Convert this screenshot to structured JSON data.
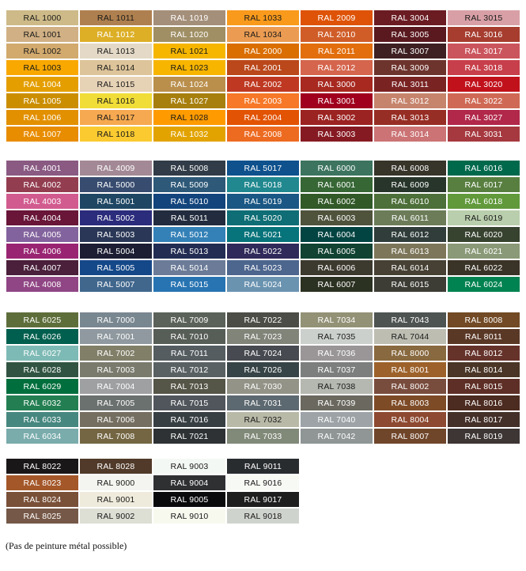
{
  "groups": [
    {
      "rows": 8,
      "columns": [
        [
          [
            "RAL 1000",
            "#CDBA88",
            "d"
          ],
          [
            "RAL 1001",
            "#D0B084",
            "d"
          ],
          [
            "RAL 1002",
            "#D2AA6D",
            "d"
          ],
          [
            "RAL 1003",
            "#F9A800",
            "d"
          ],
          [
            "RAL 1004",
            "#E49E00",
            "w"
          ],
          [
            "RAL 1005",
            "#CB8E00",
            "w"
          ],
          [
            "RAL 1006",
            "#E29000",
            "w"
          ],
          [
            "RAL 1007",
            "#E88C00",
            "w"
          ]
        ],
        [
          [
            "RAL 1011",
            "#AF804F",
            "d"
          ],
          [
            "RAL 1012",
            "#DDAF27",
            "w"
          ],
          [
            "RAL 1013",
            "#E3D9C6",
            "d"
          ],
          [
            "RAL 1014",
            "#DDC49A",
            "d"
          ],
          [
            "RAL 1015",
            "#E6D2B5",
            "d"
          ],
          [
            "RAL 1016",
            "#F1DD38",
            "d"
          ],
          [
            "RAL 1017",
            "#F6A950",
            "d"
          ],
          [
            "RAL 1018",
            "#FACA30",
            "d"
          ]
        ],
        [
          [
            "RAL 1019",
            "#A48F7A",
            "w"
          ],
          [
            "RAL 1020",
            "#A08F65",
            "w"
          ],
          [
            "RAL 1021",
            "#F6B600",
            "d"
          ],
          [
            "RAL 1023",
            "#F7B500",
            "d"
          ],
          [
            "RAL 1024",
            "#BA8F4C",
            "w"
          ],
          [
            "RAL 1027",
            "#A77F0E",
            "w"
          ],
          [
            "RAL 1028",
            "#FF9B00",
            "d"
          ],
          [
            "RAL 1032",
            "#E2A300",
            "w"
          ]
        ],
        [
          [
            "RAL 1033",
            "#F99A1C",
            "d"
          ],
          [
            "RAL 1034",
            "#EB9C52",
            "d"
          ],
          [
            "RAL 2000",
            "#DA6E00",
            "w"
          ],
          [
            "RAL 2001",
            "#BA481B",
            "w"
          ],
          [
            "RAL 2002",
            "#BF3922",
            "w"
          ],
          [
            "RAL 2003",
            "#F67828",
            "w"
          ],
          [
            "RAL 2004",
            "#E25303",
            "w"
          ],
          [
            "RAL 2008",
            "#ED6B21",
            "w"
          ]
        ],
        [
          [
            "RAL 2009",
            "#DE5307",
            "w"
          ],
          [
            "RAL 2010",
            "#D05D28",
            "w"
          ],
          [
            "RAL 2011",
            "#E26E0E",
            "w"
          ],
          [
            "RAL 2012",
            "#D5654D",
            "w"
          ],
          [
            "RAL 3000",
            "#A72920",
            "w"
          ],
          [
            "RAL 3001",
            "#A0001E",
            "w"
          ],
          [
            "RAL 3002",
            "#9B2321",
            "w"
          ],
          [
            "RAL 3003",
            "#861A22",
            "w"
          ]
        ],
        [
          [
            "RAL 3004",
            "#6B1C23",
            "w"
          ],
          [
            "RAL 3005",
            "#59191F",
            "w"
          ],
          [
            "RAL 3007",
            "#3E2022",
            "w"
          ],
          [
            "RAL 3009",
            "#6D342D",
            "w"
          ],
          [
            "RAL 3011",
            "#792423",
            "w"
          ],
          [
            "RAL 3012",
            "#C6846D",
            "w"
          ],
          [
            "RAL 3013",
            "#972E25",
            "w"
          ],
          [
            "RAL 3014",
            "#CB7375",
            "w"
          ]
        ],
        [
          [
            "RAL 3015",
            "#D8A0A6",
            "d"
          ],
          [
            "RAL 3016",
            "#A63D2F",
            "w"
          ],
          [
            "RAL 3017",
            "#CB555D",
            "w"
          ],
          [
            "RAL 3018",
            "#C73F4A",
            "w"
          ],
          [
            "RAL 3020",
            "#C1121C",
            "w"
          ],
          [
            "RAL 3022",
            "#CF6955",
            "w"
          ],
          [
            "RAL 3027",
            "#B1284A",
            "w"
          ],
          [
            "RAL 3031",
            "#A6393F",
            "w"
          ]
        ]
      ]
    },
    {
      "rows": 8,
      "columns": [
        [
          [
            "RAL 4001",
            "#8A5A83",
            "w"
          ],
          [
            "RAL 4002",
            "#933D50",
            "w"
          ],
          [
            "RAL 4003",
            "#D15B8F",
            "w"
          ],
          [
            "RAL 4004",
            "#691639",
            "w"
          ],
          [
            "RAL 4005",
            "#83639D",
            "w"
          ],
          [
            "RAL 4006",
            "#992572",
            "w"
          ],
          [
            "RAL 4007",
            "#4A203B",
            "w"
          ],
          [
            "RAL 4008",
            "#904684",
            "w"
          ]
        ],
        [
          [
            "RAL 4009",
            "#A38995",
            "w"
          ],
          [
            "RAL 5000",
            "#384C70",
            "w"
          ],
          [
            "RAL 5001",
            "#1F4764",
            "w"
          ],
          [
            "RAL 5002",
            "#2B2C7C",
            "w"
          ],
          [
            "RAL 5003",
            "#2A3756",
            "w"
          ],
          [
            "RAL 5004",
            "#1D1E33",
            "w"
          ],
          [
            "RAL 5005",
            "#154889",
            "w"
          ],
          [
            "RAL 5007",
            "#41678D",
            "w"
          ]
        ],
        [
          [
            "RAL 5008",
            "#313C48",
            "w"
          ],
          [
            "RAL 5009",
            "#2E5978",
            "w"
          ],
          [
            "RAL 5010",
            "#13447C",
            "w"
          ],
          [
            "RAL 5011",
            "#232C3F",
            "w"
          ],
          [
            "RAL 5012",
            "#3481B8",
            "w"
          ],
          [
            "RAL 5013",
            "#232D53",
            "w"
          ],
          [
            "RAL 5014",
            "#6C7C98",
            "w"
          ],
          [
            "RAL 5015",
            "#2874B2",
            "w"
          ]
        ],
        [
          [
            "RAL 5017",
            "#0E518D",
            "w"
          ],
          [
            "RAL 5018",
            "#21888F",
            "w"
          ],
          [
            "RAL 5019",
            "#1A5784",
            "w"
          ],
          [
            "RAL 5020",
            "#0F6E75",
            "w"
          ],
          [
            "RAL 5021",
            "#07737A",
            "w"
          ],
          [
            "RAL 5022",
            "#2F2A5A",
            "w"
          ],
          [
            "RAL 5023",
            "#4D668E",
            "w"
          ],
          [
            "RAL 5024",
            "#6A93B0",
            "w"
          ]
        ],
        [
          [
            "RAL 6000",
            "#3C7460",
            "w"
          ],
          [
            "RAL 6001",
            "#366735",
            "w"
          ],
          [
            "RAL 6002",
            "#325928",
            "w"
          ],
          [
            "RAL 6003",
            "#50533C",
            "w"
          ],
          [
            "RAL 6004",
            "#024442",
            "w"
          ],
          [
            "RAL 6005",
            "#114232",
            "w"
          ],
          [
            "RAL 6006",
            "#3C392E",
            "w"
          ],
          [
            "RAL 6007",
            "#2C3222",
            "w"
          ]
        ],
        [
          [
            "RAL 6008",
            "#37342A",
            "w"
          ],
          [
            "RAL 6009",
            "#27352A",
            "w"
          ],
          [
            "RAL 6010",
            "#4D6F39",
            "w"
          ],
          [
            "RAL 6011",
            "#6C7C59",
            "w"
          ],
          [
            "RAL 6012",
            "#303D3A",
            "w"
          ],
          [
            "RAL 6013",
            "#7D765A",
            "w"
          ],
          [
            "RAL 6014",
            "#474135",
            "w"
          ],
          [
            "RAL 6015",
            "#3D3D36",
            "w"
          ]
        ],
        [
          [
            "RAL 6016",
            "#00694C",
            "w"
          ],
          [
            "RAL 6017",
            "#587F40",
            "w"
          ],
          [
            "RAL 6018",
            "#61993B",
            "w"
          ],
          [
            "RAL 6019",
            "#B9CEAC",
            "d"
          ],
          [
            "RAL 6020",
            "#37422F",
            "w"
          ],
          [
            "RAL 6021",
            "#8A9977",
            "w"
          ],
          [
            "RAL 6022",
            "#3A3327",
            "w"
          ],
          [
            "RAL 6024",
            "#008351",
            "w"
          ]
        ]
      ]
    },
    {
      "rows": 8,
      "columns": [
        [
          [
            "RAL 6025",
            "#5E6E3B",
            "w"
          ],
          [
            "RAL 6026",
            "#005F4E",
            "w"
          ],
          [
            "RAL 6027",
            "#7EBAB5",
            "w"
          ],
          [
            "RAL 6028",
            "#315442",
            "w"
          ],
          [
            "RAL 6029",
            "#006F3D",
            "w"
          ],
          [
            "RAL 6032",
            "#237F52",
            "w"
          ],
          [
            "RAL 6033",
            "#46877F",
            "w"
          ],
          [
            "RAL 6034",
            "#7AACAC",
            "w"
          ]
        ],
        [
          [
            "RAL 7000",
            "#798790",
            "w"
          ],
          [
            "RAL 7001",
            "#8F999F",
            "w"
          ],
          [
            "RAL 7002",
            "#817F68",
            "w"
          ],
          [
            "RAL 7003",
            "#7A7B6D",
            "w"
          ],
          [
            "RAL 7004",
            "#9EA0A1",
            "w"
          ],
          [
            "RAL 7005",
            "#6B716F",
            "w"
          ],
          [
            "RAL 7006",
            "#756F61",
            "w"
          ],
          [
            "RAL 7008",
            "#746643",
            "w"
          ]
        ],
        [
          [
            "RAL 7009",
            "#5B6259",
            "w"
          ],
          [
            "RAL 7010",
            "#575D57",
            "w"
          ],
          [
            "RAL 7011",
            "#555D61",
            "w"
          ],
          [
            "RAL 7012",
            "#596163",
            "w"
          ],
          [
            "RAL 7013",
            "#555548",
            "w"
          ],
          [
            "RAL 7015",
            "#51565C",
            "w"
          ],
          [
            "RAL 7016",
            "#373F43",
            "w"
          ],
          [
            "RAL 7021",
            "#2E3234",
            "w"
          ]
        ],
        [
          [
            "RAL 7022",
            "#4B4D46",
            "w"
          ],
          [
            "RAL 7023",
            "#818479",
            "w"
          ],
          [
            "RAL 7024",
            "#474A50",
            "w"
          ],
          [
            "RAL 7026",
            "#374447",
            "w"
          ],
          [
            "RAL 7030",
            "#939388",
            "w"
          ],
          [
            "RAL 7031",
            "#5D6970",
            "w"
          ],
          [
            "RAL 7032",
            "#B9B9A8",
            "d"
          ],
          [
            "RAL 7033",
            "#818979",
            "w"
          ]
        ],
        [
          [
            "RAL 7034",
            "#939176",
            "w"
          ],
          [
            "RAL 7035",
            "#CBD0CC",
            "d"
          ],
          [
            "RAL 7036",
            "#9A9697",
            "w"
          ],
          [
            "RAL 7037",
            "#7C7F7E",
            "w"
          ],
          [
            "RAL 7038",
            "#B4B8B0",
            "d"
          ],
          [
            "RAL 7039",
            "#6B695F",
            "w"
          ],
          [
            "RAL 7040",
            "#9DA3A6",
            "w"
          ],
          [
            "RAL 7042",
            "#8F9695",
            "w"
          ]
        ],
        [
          [
            "RAL 7043",
            "#4E5451",
            "w"
          ],
          [
            "RAL 7044",
            "#BDBDB2",
            "d"
          ],
          [
            "RAL 8000",
            "#89693F",
            "w"
          ],
          [
            "RAL 8001",
            "#9D622B",
            "w"
          ],
          [
            "RAL 8002",
            "#794D3E",
            "w"
          ],
          [
            "RAL 8003",
            "#7E4B27",
            "w"
          ],
          [
            "RAL 8004",
            "#8D4931",
            "w"
          ],
          [
            "RAL 8007",
            "#70462B",
            "w"
          ]
        ],
        [
          [
            "RAL 8008",
            "#724A25",
            "w"
          ],
          [
            "RAL 8011",
            "#5A3826",
            "w"
          ],
          [
            "RAL 8012",
            "#66332B",
            "w"
          ],
          [
            "RAL 8014",
            "#4A3526",
            "w"
          ],
          [
            "RAL 8015",
            "#5E2F26",
            "w"
          ],
          [
            "RAL 8016",
            "#4C2B20",
            "w"
          ],
          [
            "RAL 8017",
            "#442F29",
            "w"
          ],
          [
            "RAL 8019",
            "#3D3635",
            "w"
          ]
        ]
      ]
    },
    {
      "rows": 4,
      "columns": [
        [
          [
            "RAL 8022",
            "#1A1718",
            "w"
          ],
          [
            "RAL 8023",
            "#A45729",
            "w"
          ],
          [
            "RAL 8024",
            "#795038",
            "w"
          ],
          [
            "RAL 8025",
            "#755847",
            "w"
          ]
        ],
        [
          [
            "RAL 8028",
            "#513A2A",
            "w"
          ],
          [
            "RAL 9000",
            "#F4F4F0",
            "d"
          ],
          [
            "RAL 9001",
            "#EFEBDC",
            "d"
          ],
          [
            "RAL 9002",
            "#DDDED4",
            "d"
          ]
        ],
        [
          [
            "RAL 9003",
            "#F4F8F4",
            "d"
          ],
          [
            "RAL 9004",
            "#2E3032",
            "w"
          ],
          [
            "RAL 9005",
            "#0A0A0D",
            "w"
          ],
          [
            "RAL 9010",
            "#F7F9EF",
            "d"
          ]
        ],
        [
          [
            "RAL 9011",
            "#292C2F",
            "w"
          ],
          [
            "RAL 9016",
            "#F7F9F4",
            "d"
          ],
          [
            "RAL 9017",
            "#1E1E1E",
            "w"
          ],
          [
            "RAL 9018",
            "#CFD3CD",
            "d"
          ]
        ]
      ]
    }
  ],
  "text_colors": {
    "d": "#1a1a1a",
    "w": "#ffffff"
  },
  "footnote": "(Pas de peinture métal possible)"
}
